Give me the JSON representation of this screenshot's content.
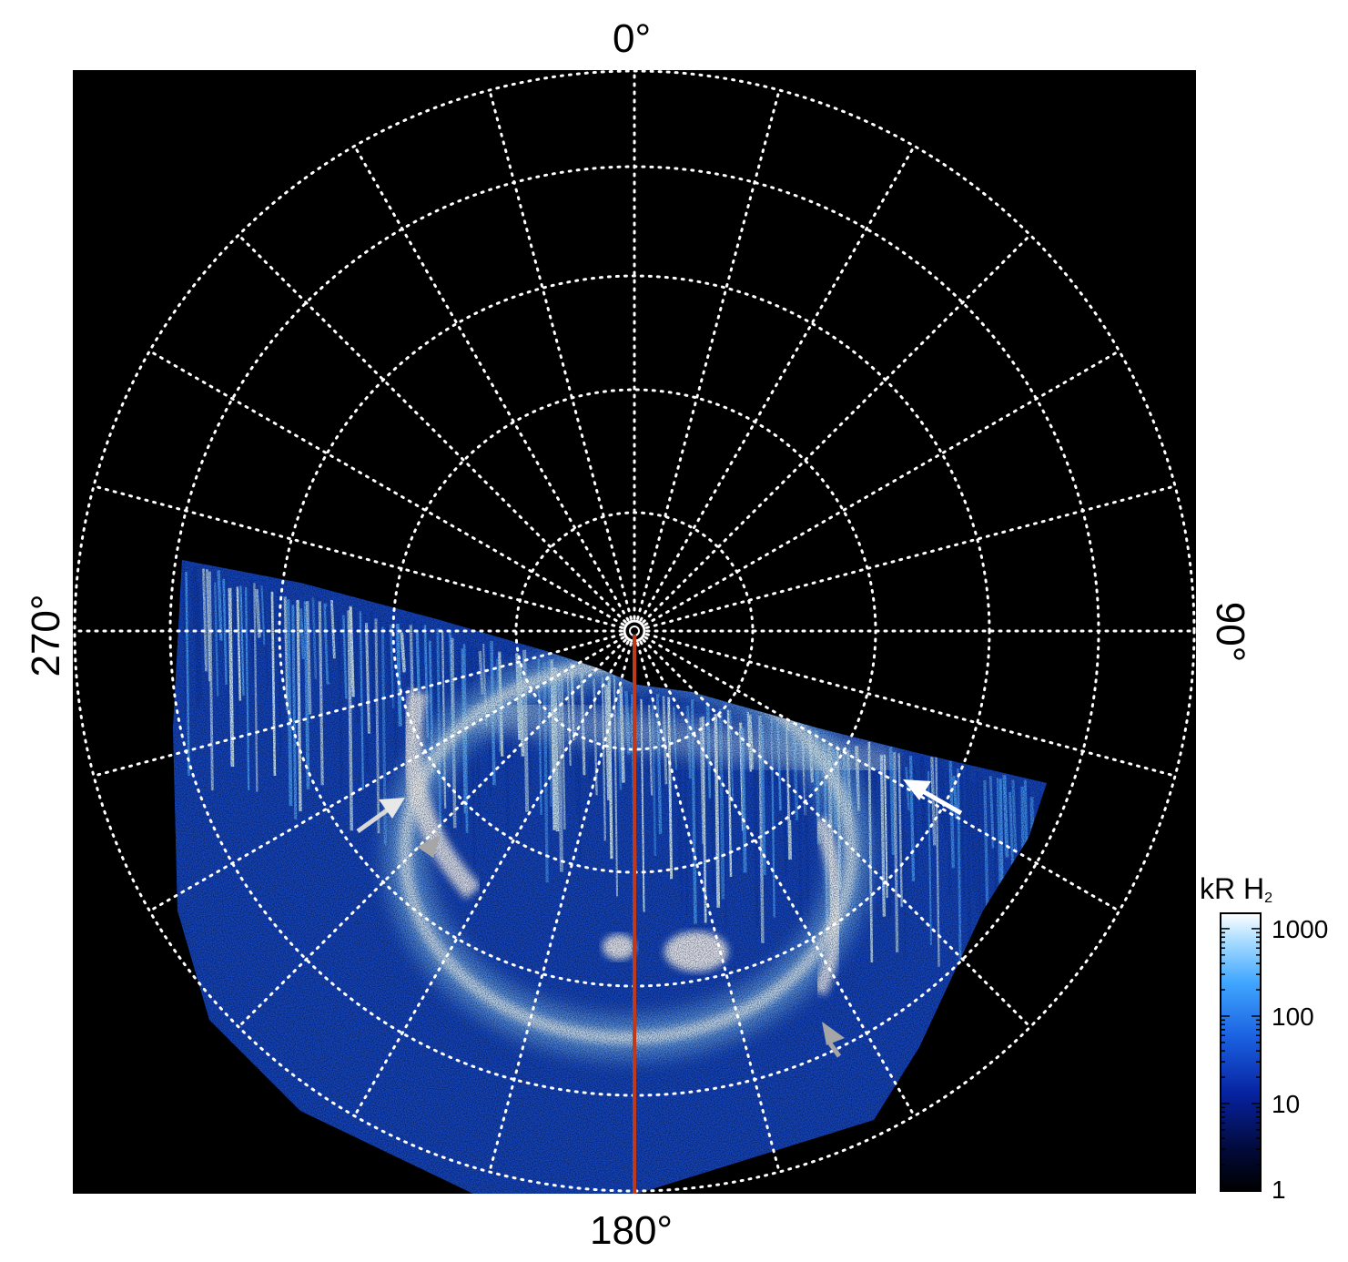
{
  "labels": {
    "top": "0°",
    "bottom": "180°",
    "left": "270°",
    "right": "90°"
  },
  "colorbar": {
    "title": "kR H",
    "title_sub": "2",
    "ticks": [
      "1000",
      "100",
      "10",
      "1"
    ],
    "scale": "log",
    "range": [
      1,
      1500
    ]
  },
  "colors": {
    "background": "#000000",
    "grid": "#ffffff",
    "meridian_line": "#c0391b",
    "arrow_white": "#ffffff",
    "arrow_grey": "#a6a6a6"
  }
}
